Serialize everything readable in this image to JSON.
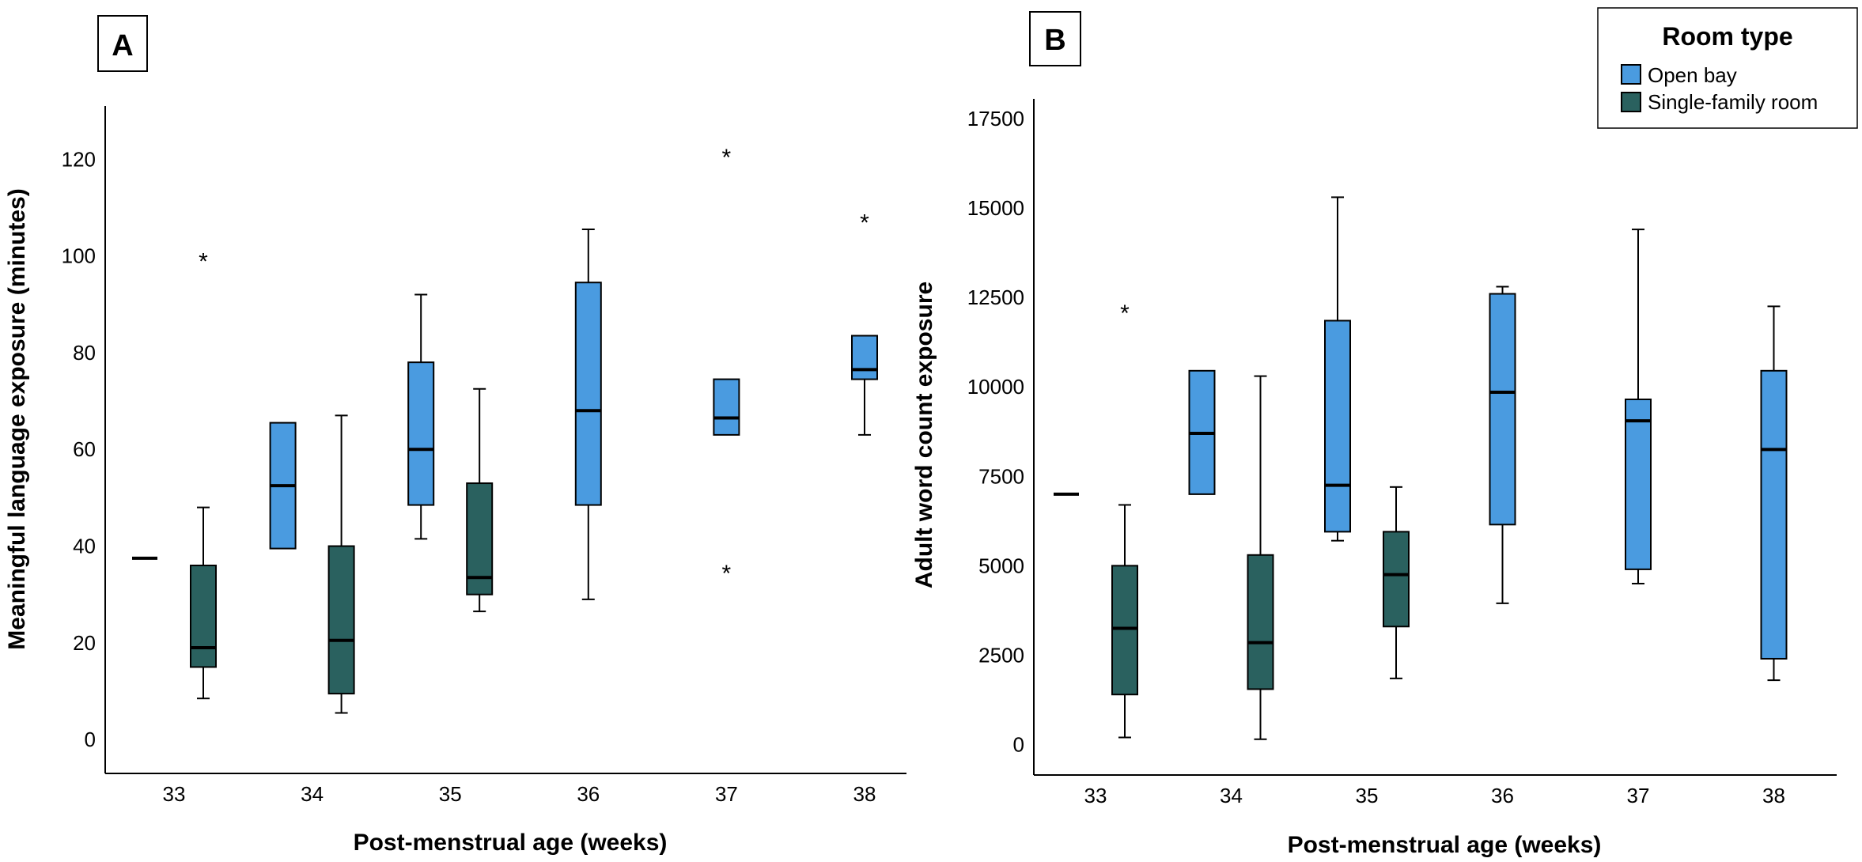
{
  "colors": {
    "open_bay": "#4a9be0",
    "single_family": "#2a615f"
  },
  "legend": {
    "title": "Room type",
    "items": [
      {
        "label": "Open bay",
        "color": "#4a9be0"
      },
      {
        "label": "Single-family room",
        "color": "#2a615f"
      }
    ],
    "placement": "top-right"
  },
  "chart_data": [
    {
      "type": "boxplot",
      "panel_label": "A",
      "categories": [
        "33",
        "34",
        "35",
        "36",
        "37",
        "38"
      ],
      "xlabel": "Post-menstrual age (weeks)",
      "ylabel": "Meaningful language exposure (minutes)",
      "ylim": [
        -7,
        131
      ],
      "yticks": [
        "0",
        "20",
        "40",
        "60",
        "80",
        "100",
        "120"
      ],
      "series": [
        {
          "name": "Open bay",
          "boxes": [
            {
              "category": "33",
              "min": 37.5,
              "q1": 37.5,
              "median": 37.5,
              "q3": 37.5,
              "max": 37.5,
              "outliers": []
            },
            {
              "category": "34",
              "min": 39.5,
              "q1": 39.5,
              "median": 52.5,
              "q3": 65.5,
              "max": 65.5,
              "outliers": []
            },
            {
              "category": "35",
              "min": 41.5,
              "q1": 48.5,
              "median": 60,
              "q3": 78,
              "max": 92,
              "outliers": []
            },
            {
              "category": "36",
              "min": 29,
              "q1": 48.5,
              "median": 68,
              "q3": 94.5,
              "max": 105.5,
              "outliers": []
            },
            {
              "category": "37",
              "min": 63,
              "q1": 63,
              "median": 66.5,
              "q3": 74.5,
              "max": 74.5,
              "outliers": [
                121,
                35
              ]
            },
            {
              "category": "38",
              "min": 63,
              "q1": 74.5,
              "median": 76.5,
              "q3": 83.5,
              "max": 83.5,
              "outliers": [
                107.5
              ]
            }
          ]
        },
        {
          "name": "Single-family room",
          "boxes": [
            {
              "category": "33",
              "min": 8.5,
              "q1": 15,
              "median": 19,
              "q3": 36,
              "max": 48,
              "outliers": [
                99.5
              ]
            },
            {
              "category": "34",
              "min": 5.5,
              "q1": 9.5,
              "median": 20.5,
              "q3": 40,
              "max": 67,
              "outliers": []
            },
            {
              "category": "35",
              "min": 26.5,
              "q1": 30,
              "median": 33.5,
              "q3": 53,
              "max": 72.5,
              "outliers": []
            }
          ]
        }
      ]
    },
    {
      "type": "boxplot",
      "panel_label": "B",
      "categories": [
        "33",
        "34",
        "35",
        "36",
        "37",
        "38"
      ],
      "xlabel": "Post-menstrual age (weeks)",
      "ylabel": "Adult word count exposure",
      "ylim": [
        -850,
        18050
      ],
      "yticks": [
        "0",
        "2500",
        "5000",
        "7500",
        "10000",
        "12500",
        "15000",
        "17500"
      ],
      "series": [
        {
          "name": "Open bay",
          "boxes": [
            {
              "category": "33",
              "min": 7000,
              "q1": 7000,
              "median": 7000,
              "q3": 7000,
              "max": 7000,
              "outliers": []
            },
            {
              "category": "34",
              "min": 7000,
              "q1": 7000,
              "median": 8700,
              "q3": 10450,
              "max": 10450,
              "outliers": []
            },
            {
              "category": "35",
              "min": 5700,
              "q1": 5950,
              "median": 7250,
              "q3": 11850,
              "max": 15300,
              "outliers": []
            },
            {
              "category": "36",
              "min": 3950,
              "q1": 6150,
              "median": 9850,
              "q3": 12600,
              "max": 12800,
              "outliers": []
            },
            {
              "category": "37",
              "min": 4500,
              "q1": 4900,
              "median": 9050,
              "q3": 9650,
              "max": 14400,
              "outliers": []
            },
            {
              "category": "38",
              "min": 1800,
              "q1": 2400,
              "median": 8250,
              "q3": 10450,
              "max": 12250,
              "outliers": []
            }
          ]
        },
        {
          "name": "Single-family room",
          "boxes": [
            {
              "category": "33",
              "min": 200,
              "q1": 1400,
              "median": 3250,
              "q3": 5000,
              "max": 6700,
              "outliers": [
                12150
              ]
            },
            {
              "category": "34",
              "min": 150,
              "q1": 1550,
              "median": 2850,
              "q3": 5300,
              "max": 10300,
              "outliers": []
            },
            {
              "category": "35",
              "min": 1850,
              "q1": 3300,
              "median": 4750,
              "q3": 5950,
              "max": 7200,
              "outliers": []
            }
          ]
        }
      ]
    }
  ]
}
